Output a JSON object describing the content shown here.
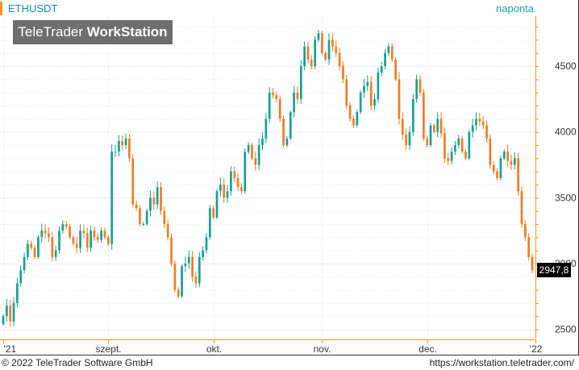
{
  "header": {
    "ticker": "ETHUSDT",
    "period": "naponta"
  },
  "logo": {
    "brand_light": "TeleTrader ",
    "brand_bold": "WorkStation"
  },
  "footer": {
    "copyright": "© 2022 TeleTrader Software GmbH",
    "website": "https://workstation.teletrader.com/"
  },
  "last_price_label": "2947,8",
  "colors": {
    "up": "#17a093",
    "down": "#f07c24",
    "axis": "#f7941d"
  },
  "chart_data": {
    "type": "candlestick",
    "ylim": [
      2430,
      4880
    ],
    "yticks": [
      2500,
      3000,
      3500,
      4000,
      4500
    ],
    "ytick_labels": [
      "2500",
      "3000",
      "3500",
      "4000",
      "4500"
    ],
    "xticks": [
      {
        "label": "'21",
        "index": 0
      },
      {
        "label": "szept.",
        "index": 30
      },
      {
        "label": "okt.",
        "index": 60
      },
      {
        "label": "nov.",
        "index": 91
      },
      {
        "label": "dec.",
        "index": 121
      },
      {
        "label": "'22",
        "index": 152
      }
    ],
    "last_price": 2947.8,
    "closes": [
      2600,
      2680,
      2560,
      2700,
      2850,
      2950,
      3050,
      3150,
      3120,
      3050,
      3200,
      3250,
      3230,
      3200,
      3050,
      3100,
      3250,
      3300,
      3280,
      3200,
      3150,
      3120,
      3250,
      3230,
      3120,
      3250,
      3200,
      3180,
      3250,
      3200,
      3150,
      3850,
      3850,
      3930,
      3900,
      3950,
      3800,
      3450,
      3420,
      3300,
      3300,
      3400,
      3500,
      3450,
      3580,
      3400,
      3300,
      3200,
      3000,
      2800,
      2750,
      2980,
      3000,
      3050,
      2900,
      2850,
      3050,
      3100,
      3200,
      3420,
      3350,
      3550,
      3600,
      3500,
      3550,
      3700,
      3650,
      3580,
      3550,
      3850,
      3900,
      3800,
      3750,
      3900,
      3950,
      4100,
      4300,
      4280,
      4250,
      4100,
      3900,
      3950,
      4150,
      4300,
      4250,
      4500,
      4650,
      4550,
      4500,
      4700,
      4750,
      4600,
      4550,
      4700,
      4650,
      4600,
      4500,
      4400,
      4200,
      4100,
      4050,
      4150,
      4300,
      4350,
      4380,
      4200,
      4250,
      4450,
      4500,
      4600,
      4650,
      4550,
      4400,
      4100,
      3980,
      3900,
      4000,
      4250,
      4400,
      4300,
      3950,
      3900,
      4050,
      4000,
      4100,
      3990,
      3800,
      3780,
      3850,
      3900,
      3950,
      3850,
      3800,
      4000,
      4050,
      4100,
      4080,
      4050,
      3950,
      3750,
      3700,
      3650,
      3800,
      3850,
      3780,
      3750,
      3800,
      3550,
      3300,
      3200,
      3050,
      2947.8
    ]
  }
}
